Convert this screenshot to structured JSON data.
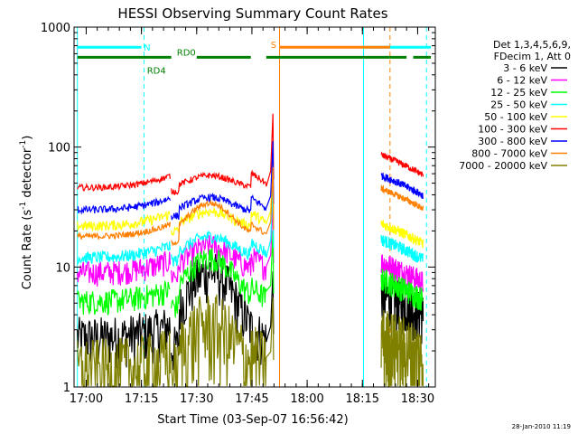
{
  "chart_data": {
    "type": "line",
    "title": "HESSI Observing Summary Count Rates",
    "xlabel": "Start Time (03-Sep-07 16:56:42)",
    "ylabel_main": "Count Rate (s",
    "ylabel_sup1": "-1",
    "ylabel_mid": " detector",
    "ylabel_sup2": "-1",
    "ylabel_end": ")",
    "yscale": "log",
    "ylim": [
      1,
      1000
    ],
    "xlim": [
      16.945,
      18.58
    ],
    "x_ticks": [
      {
        "value": 17.0,
        "label": "17:00"
      },
      {
        "value": 17.25,
        "label": "17:15"
      },
      {
        "value": 17.5,
        "label": "17:30"
      },
      {
        "value": 17.75,
        "label": "17:45"
      },
      {
        "value": 18.0,
        "label": "18:00"
      },
      {
        "value": 18.25,
        "label": "18:15"
      },
      {
        "value": 18.5,
        "label": "18:30"
      }
    ],
    "y_ticks": [
      {
        "value": 1,
        "label": "1"
      },
      {
        "value": 10,
        "label": "10"
      },
      {
        "value": 100,
        "label": "100"
      },
      {
        "value": 1000,
        "label": "1000"
      }
    ],
    "legend_title": [
      "Det 1,3,4,5,6,9,",
      "FDecim 1, Att 0"
    ],
    "series": [
      {
        "name": "3 - 6 keV",
        "color": "#000000",
        "base": 2.3,
        "peak": 9.2,
        "seg1": 2.6,
        "seg3": 6.0,
        "noise": 0.12
      },
      {
        "name": "6 - 12 keV",
        "color": "#ff00ff",
        "base": 9.0,
        "peak": 15.0,
        "seg1": 9.0,
        "seg3": 11.0,
        "noise": 0.06
      },
      {
        "name": "12 - 25 keV",
        "color": "#00ff00",
        "base": 5.0,
        "peak": 12.0,
        "seg1": 5.2,
        "seg3": 8.0,
        "noise": 0.06
      },
      {
        "name": "25 - 50 keV",
        "color": "#00ffff",
        "base": 12.0,
        "peak": 18.0,
        "seg1": 12.0,
        "seg3": 17.0,
        "noise": 0.03
      },
      {
        "name": "50 - 100 keV",
        "color": "#ffff00",
        "base": 21.0,
        "peak": 29.0,
        "seg1": 22.0,
        "seg3": 23.0,
        "noise": 0.025
      },
      {
        "name": "100 - 300 keV",
        "color": "#ff0000",
        "base": 45.0,
        "peak": 58.0,
        "seg1": 46.0,
        "seg3": 86.0,
        "noise": 0.015
      },
      {
        "name": "300 - 800 keV",
        "color": "#0000ff",
        "base": 28.0,
        "peak": 38.0,
        "seg1": 30.0,
        "seg3": 58.0,
        "noise": 0.018
      },
      {
        "name": "800 - 7000 keV",
        "color": "#ff8000",
        "base": 17.0,
        "peak": 34.0,
        "seg1": 18.0,
        "seg3": 45.0,
        "noise": 0.015
      },
      {
        "name": "7000 - 20000 keV",
        "color": "#808000",
        "base": 1.4,
        "peak": 3.4,
        "seg1": 1.4,
        "seg3": 2.6,
        "noise": 0.2
      }
    ],
    "segments": [
      {
        "start": 16.96,
        "end": 17.38
      },
      {
        "start": 17.385,
        "end": 17.815
      },
      {
        "start": 18.335,
        "end": 18.525
      }
    ],
    "flare": {
      "time": 17.845,
      "peak": 190
    },
    "vlines": [
      {
        "x": 16.96,
        "color": "#00ffff",
        "dash": false
      },
      {
        "x": 17.262,
        "color": "#00ffff",
        "dash": true
      },
      {
        "x": 17.875,
        "color": "#ff8000",
        "dash": false
      },
      {
        "x": 18.255,
        "color": "#00ffff",
        "dash": false
      },
      {
        "x": 18.375,
        "color": "#ff8000",
        "dash": true
      },
      {
        "x": 18.54,
        "color": "#00ffff",
        "dash": true
      }
    ],
    "annotation_bars": [
      {
        "label": "N",
        "color": "#00ffff",
        "y": 680,
        "segments": [
          [
            16.96,
            17.25
          ],
          [
            18.255,
            18.56
          ]
        ]
      },
      {
        "label": "S",
        "color": "#ff8000",
        "y": 680,
        "segments": [
          [
            17.875,
            18.375
          ]
        ]
      },
      {
        "label": "RD0",
        "color": "#008000",
        "y": 560,
        "segments": [
          [
            16.96,
            17.385
          ],
          [
            17.815,
            18.375
          ],
          [
            18.48,
            18.56
          ]
        ]
      },
      {
        "label": "RD4",
        "color": "#008000",
        "y": 560,
        "segments": [
          [
            17.5,
            17.745
          ],
          [
            18.375,
            18.45
          ]
        ]
      }
    ],
    "annotation_labels": [
      {
        "text": "N",
        "x": 17.26,
        "y": 680,
        "color": "#00ffff"
      },
      {
        "text": "S",
        "x": 17.835,
        "y": 720,
        "color": "#ff8000"
      },
      {
        "text": "RD0",
        "x": 17.41,
        "y": 620,
        "color": "#008000"
      },
      {
        "text": "RD4",
        "x": 17.275,
        "y": 440,
        "color": "#008000"
      }
    ],
    "grid": false,
    "legend_position": "right"
  },
  "timestamp": "28-Jan-2010 11:19"
}
